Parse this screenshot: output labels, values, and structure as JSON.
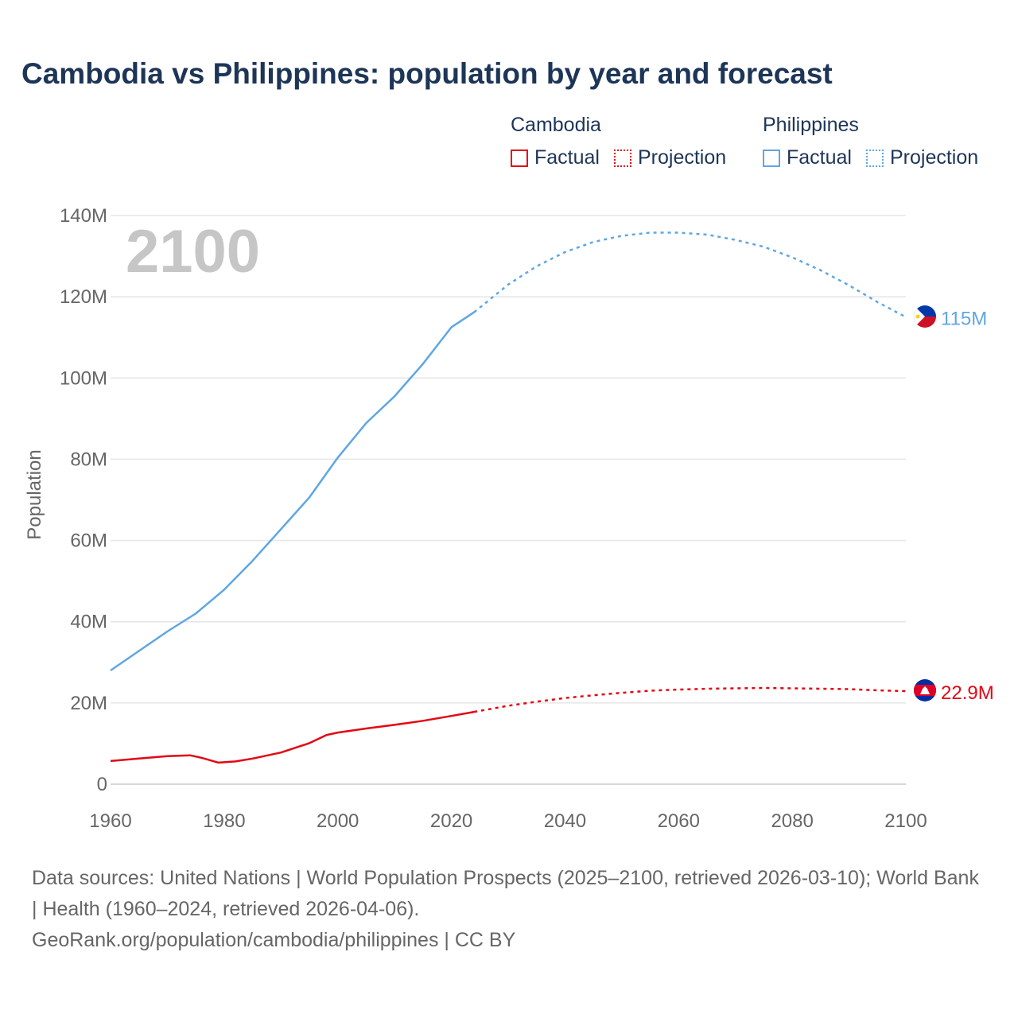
{
  "title": "Cambodia vs Philippines: population by year and forecast",
  "legend": {
    "groups": [
      {
        "name": "Cambodia",
        "color": "#e30613",
        "factual": "Factual",
        "projection": "Projection"
      },
      {
        "name": "Philippines",
        "color": "#5ea6e4",
        "factual": "Factual",
        "projection": "Projection"
      }
    ]
  },
  "footer": {
    "sources": "Data sources: United Nations | World Population Prospects (2025–2100, retrieved 2026-03-10); World Bank | Health (1960–2024, retrieved 2026-04-06).",
    "link": "GeoRank.org/population/cambodia/philippines | CC BY"
  },
  "chart_data": {
    "type": "line",
    "title": "Cambodia vs Philippines: population by year and forecast",
    "xlabel": "",
    "ylabel": "Population",
    "current_year": "2100",
    "xlim": [
      1960,
      2100
    ],
    "ylim": [
      0,
      140000000
    ],
    "x_ticks": [
      1960,
      1980,
      2000,
      2020,
      2040,
      2060,
      2080,
      2100
    ],
    "y_ticks": [
      {
        "value": 0,
        "label": "0"
      },
      {
        "value": 20000000,
        "label": "20M"
      },
      {
        "value": 40000000,
        "label": "40M"
      },
      {
        "value": 60000000,
        "label": "60M"
      },
      {
        "value": 80000000,
        "label": "80M"
      },
      {
        "value": 100000000,
        "label": "100M"
      },
      {
        "value": 120000000,
        "label": "120M"
      },
      {
        "value": 140000000,
        "label": "140M"
      }
    ],
    "series": [
      {
        "name": "Philippines",
        "color": "#5ea6e4",
        "end_label": "115M",
        "factual": [
          [
            1960,
            28.0
          ],
          [
            1965,
            32.8
          ],
          [
            1970,
            37.6
          ],
          [
            1975,
            42.0
          ],
          [
            1980,
            47.9
          ],
          [
            1985,
            55.0
          ],
          [
            1990,
            62.8
          ],
          [
            1995,
            70.6
          ],
          [
            2000,
            80.4
          ],
          [
            2005,
            88.9
          ],
          [
            2010,
            95.5
          ],
          [
            2015,
            103.5
          ],
          [
            2020,
            112.5
          ],
          [
            2024,
            116.2
          ]
        ],
        "projection": [
          [
            2024,
            116.2
          ],
          [
            2030,
            123.0
          ],
          [
            2035,
            127.5
          ],
          [
            2040,
            131.0
          ],
          [
            2045,
            133.5
          ],
          [
            2050,
            135.0
          ],
          [
            2055,
            135.8
          ],
          [
            2060,
            135.8
          ],
          [
            2065,
            135.3
          ],
          [
            2070,
            134.0
          ],
          [
            2075,
            132.3
          ],
          [
            2080,
            129.7
          ],
          [
            2085,
            126.5
          ],
          [
            2090,
            122.8
          ],
          [
            2095,
            118.7
          ],
          [
            2100,
            115.0
          ]
        ]
      },
      {
        "name": "Cambodia",
        "color": "#e30613",
        "end_label": "22.9M",
        "factual": [
          [
            1960,
            5.7
          ],
          [
            1965,
            6.3
          ],
          [
            1970,
            6.9
          ],
          [
            1974,
            7.1
          ],
          [
            1976,
            6.5
          ],
          [
            1979,
            5.3
          ],
          [
            1982,
            5.6
          ],
          [
            1985,
            6.3
          ],
          [
            1990,
            7.8
          ],
          [
            1995,
            10.1
          ],
          [
            1998,
            12.1
          ],
          [
            2000,
            12.7
          ],
          [
            2005,
            13.7
          ],
          [
            2010,
            14.6
          ],
          [
            2015,
            15.6
          ],
          [
            2020,
            16.8
          ],
          [
            2024,
            17.8
          ]
        ],
        "projection": [
          [
            2024,
            17.8
          ],
          [
            2030,
            19.3
          ],
          [
            2035,
            20.3
          ],
          [
            2040,
            21.2
          ],
          [
            2045,
            21.9
          ],
          [
            2050,
            22.5
          ],
          [
            2055,
            23.0
          ],
          [
            2060,
            23.3
          ],
          [
            2065,
            23.5
          ],
          [
            2070,
            23.6
          ],
          [
            2075,
            23.7
          ],
          [
            2080,
            23.6
          ],
          [
            2085,
            23.5
          ],
          [
            2090,
            23.4
          ],
          [
            2095,
            23.1
          ],
          [
            2100,
            22.9
          ]
        ]
      }
    ]
  }
}
